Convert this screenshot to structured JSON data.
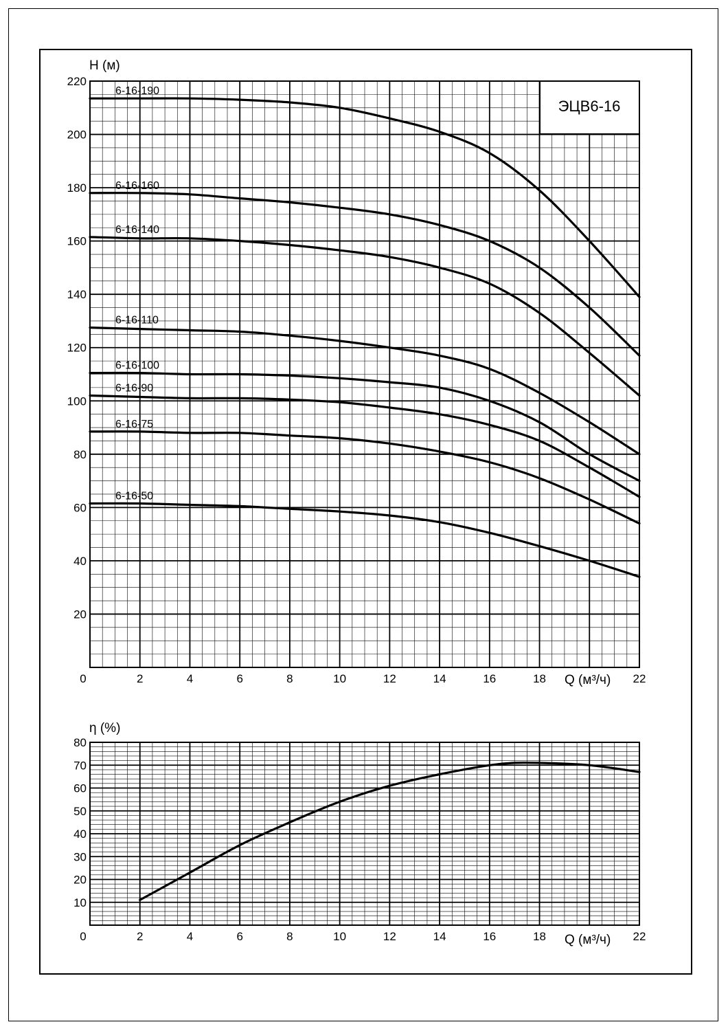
{
  "chart_data": [
    {
      "type": "line",
      "title": "ЭЦВ6-16",
      "xlabel": "Q (м³/ч)",
      "ylabel": "H (м)",
      "xlim": [
        0,
        22
      ],
      "ylim": [
        0,
        220
      ],
      "x_ticks": [
        "0",
        "2",
        "4",
        "6",
        "8",
        "10",
        "12",
        "14",
        "16",
        "18",
        "22"
      ],
      "y_ticks": [
        "20",
        "40",
        "60",
        "80",
        "100",
        "120",
        "140",
        "160",
        "180",
        "200",
        "220"
      ],
      "grid": true,
      "series": [
        {
          "name": "6-16-190",
          "x": [
            0,
            2,
            4,
            6,
            8,
            10,
            12,
            14,
            16,
            18,
            20,
            22
          ],
          "y": [
            213.5,
            213.5,
            213.5,
            213,
            212,
            210,
            206,
            201,
            193,
            179,
            160,
            139
          ]
        },
        {
          "name": "6-16-160",
          "x": [
            0,
            2,
            4,
            6,
            8,
            10,
            12,
            14,
            16,
            18,
            20,
            22
          ],
          "y": [
            178,
            178,
            177.5,
            176,
            174.5,
            172.5,
            170,
            166,
            160,
            150,
            135,
            117
          ]
        },
        {
          "name": "6-16-140",
          "x": [
            0,
            2,
            4,
            6,
            8,
            10,
            12,
            14,
            16,
            18,
            20,
            22
          ],
          "y": [
            161.5,
            161,
            161,
            160,
            158.5,
            156.5,
            154,
            150,
            144,
            133,
            118,
            102
          ]
        },
        {
          "name": "6-16-110",
          "x": [
            0,
            2,
            4,
            6,
            8,
            10,
            12,
            14,
            16,
            18,
            20,
            22
          ],
          "y": [
            127.5,
            127,
            126.5,
            126,
            124.5,
            122.5,
            120,
            117,
            112,
            103,
            92,
            80
          ]
        },
        {
          "name": "6-16-100",
          "x": [
            0,
            2,
            4,
            6,
            8,
            10,
            12,
            14,
            16,
            18,
            20,
            22
          ],
          "y": [
            110.5,
            110.5,
            110,
            110,
            109.5,
            108.5,
            107,
            105,
            100,
            92,
            80,
            70
          ]
        },
        {
          "name": "6-16-90",
          "x": [
            0,
            2,
            4,
            6,
            8,
            10,
            12,
            14,
            16,
            18,
            20,
            22
          ],
          "y": [
            102,
            101.5,
            101,
            101,
            100.5,
            99.5,
            97.5,
            95,
            91,
            85,
            75,
            64
          ]
        },
        {
          "name": "6-16-75",
          "x": [
            0,
            2,
            4,
            6,
            8,
            10,
            12,
            14,
            16,
            18,
            20,
            22
          ],
          "y": [
            88.5,
            88.5,
            88,
            88,
            87,
            86,
            84,
            81,
            77,
            71,
            63,
            54
          ]
        },
        {
          "name": "6-16-50",
          "x": [
            0,
            2,
            4,
            6,
            8,
            10,
            12,
            14,
            16,
            18,
            20,
            22
          ],
          "y": [
            61.5,
            61.5,
            61,
            60.5,
            59.5,
            58.5,
            57,
            54.5,
            50.5,
            45.5,
            40,
            34
          ]
        }
      ]
    },
    {
      "type": "line",
      "title": "",
      "xlabel": "Q (м³/ч)",
      "ylabel": "η (%)",
      "xlim": [
        0,
        22
      ],
      "ylim": [
        0,
        80
      ],
      "x_ticks": [
        "0",
        "2",
        "4",
        "6",
        "8",
        "10",
        "12",
        "14",
        "16",
        "18",
        "22"
      ],
      "y_ticks": [
        "10",
        "20",
        "30",
        "40",
        "50",
        "60",
        "70",
        "80"
      ],
      "grid": true,
      "series": [
        {
          "name": "",
          "x": [
            2,
            4,
            6,
            8,
            10,
            12,
            14,
            16,
            17,
            18,
            20,
            22
          ],
          "y": [
            11,
            23,
            35,
            45,
            54,
            61,
            66,
            70,
            71,
            71,
            70,
            67
          ]
        }
      ]
    }
  ]
}
